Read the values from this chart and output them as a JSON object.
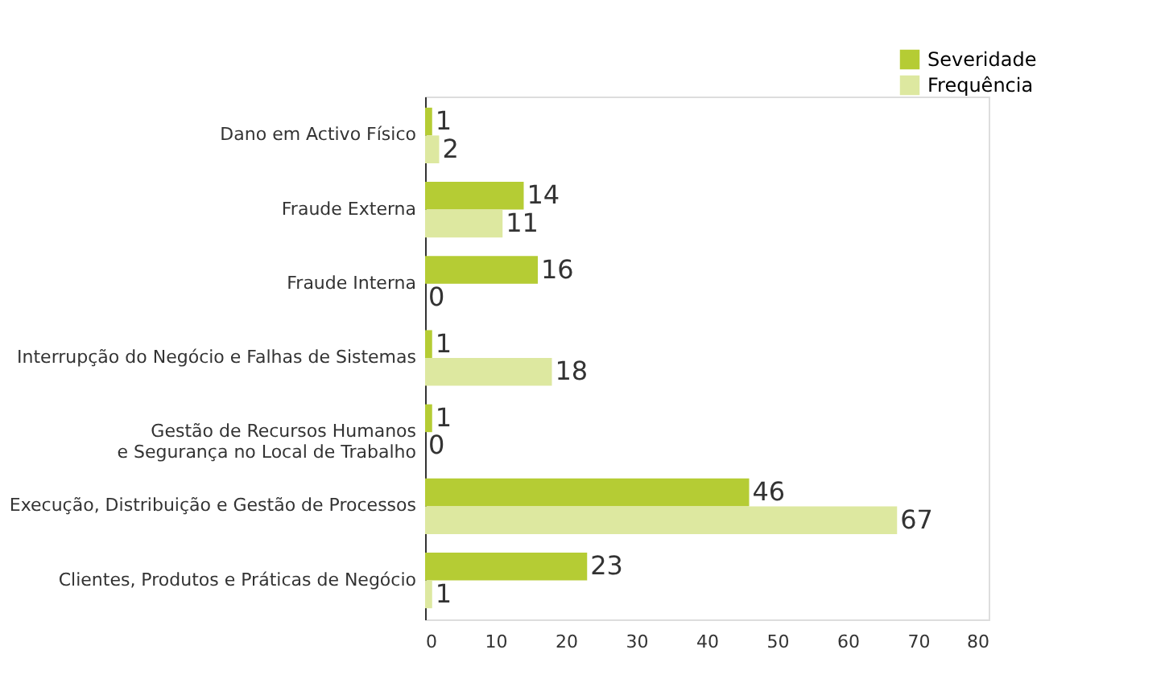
{
  "chart_data": {
    "type": "bar",
    "orientation": "horizontal",
    "categories": [
      "Dano em Activo Físico",
      "Fraude Externa",
      "Fraude Interna",
      "Interrupção do Negócio e Falhas de Sistemas",
      "Gestão de Recursos Humanos\ne Segurança no Local de Trabalho",
      "Execução, Distribuição e Gestão de Processos",
      "Clientes, Produtos e Práticas de Negócio"
    ],
    "series": [
      {
        "name": "Severidade",
        "color": "#b5cc34",
        "values": [
          1,
          14,
          16,
          1,
          1,
          46,
          23
        ]
      },
      {
        "name": "Frequência",
        "color": "#dde8a0",
        "values": [
          2,
          11,
          0,
          18,
          0,
          67,
          1
        ]
      }
    ],
    "xlim": [
      0,
      80
    ],
    "xticks": [
      0,
      10,
      20,
      30,
      40,
      50,
      60,
      70,
      80
    ],
    "data_labels": true,
    "legend": "top right",
    "grid": false
  }
}
